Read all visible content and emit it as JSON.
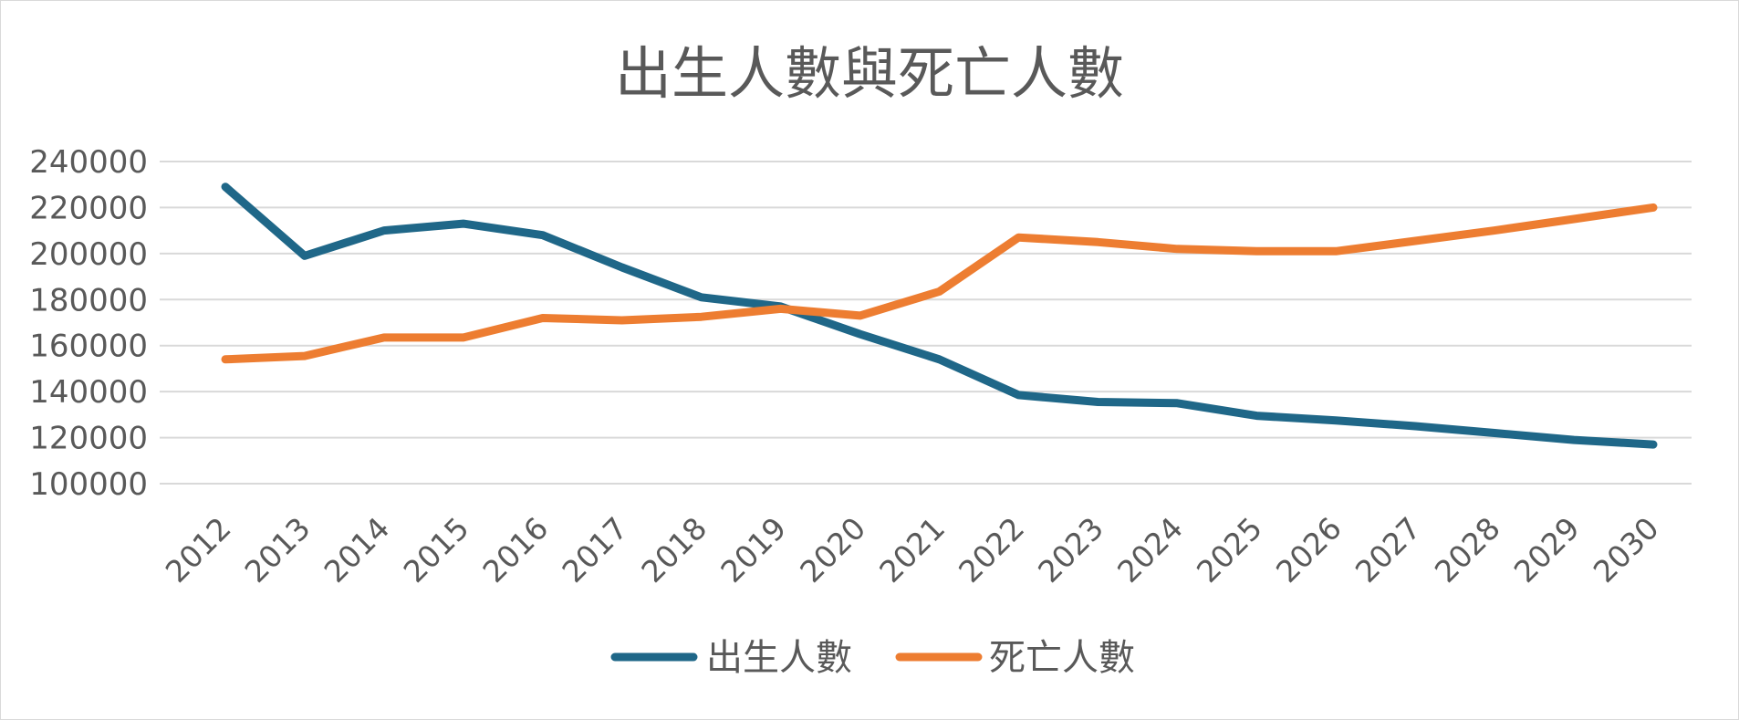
{
  "chart_data": {
    "type": "line",
    "title": "出生人數與死亡人數",
    "xlabel": "",
    "ylabel": "",
    "ylim": [
      100000,
      240000
    ],
    "yticks": [
      240000,
      220000,
      200000,
      180000,
      160000,
      140000,
      120000,
      100000
    ],
    "yticks_labels": [
      "240000",
      "220000",
      "200000",
      "180000",
      "160000",
      "140000",
      "120000",
      "100000"
    ],
    "grid": true,
    "legend_position": "bottom",
    "categories": [
      "2012",
      "2013",
      "2014",
      "2015",
      "2016",
      "2017",
      "2018",
      "2019",
      "2020",
      "2021",
      "2022",
      "2023",
      "2024",
      "2025",
      "2026",
      "2027",
      "2028",
      "2029",
      "2030"
    ],
    "series": [
      {
        "name": "出生人數",
        "color": "#1f6788",
        "values": [
          229000,
          199000,
          210000,
          213000,
          208000,
          194000,
          181000,
          177000,
          165000,
          154000,
          138500,
          135500,
          135000,
          129500,
          127500,
          125000,
          122000,
          119000,
          117000
        ]
      },
      {
        "name": "死亡人數",
        "color": "#ed7d31",
        "values": [
          154000,
          155500,
          163500,
          163500,
          172000,
          171000,
          172500,
          176000,
          173000,
          183500,
          207000,
          205000,
          202000,
          201000,
          201000,
          205500,
          210000,
          215000,
          220000
        ]
      }
    ]
  }
}
